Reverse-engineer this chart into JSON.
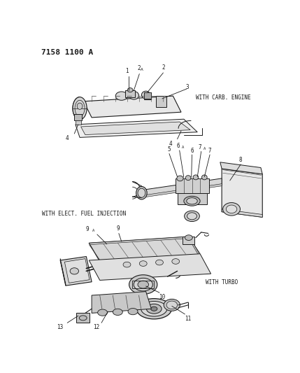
{
  "title": "7158 1100 A",
  "bg": "#ffffff",
  "dc": "#1a1a1a",
  "lc": "#444444",
  "label_carb": "WITH CARB. ENGINE",
  "label_efi": "WITH ELECT. FUEL INJECTION",
  "label_turbo": "WITH TURBO",
  "fig_width": 4.29,
  "fig_height": 5.33,
  "dpi": 100
}
